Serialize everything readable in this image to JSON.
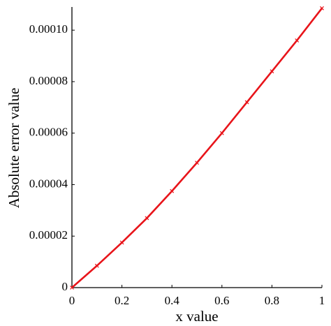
{
  "chart_data": {
    "type": "line",
    "x_label": "x value",
    "y_label": "Absolute error value",
    "x": [
      0,
      0.1,
      0.2,
      0.3,
      0.4,
      0.5,
      0.6,
      0.7,
      0.8,
      0.9,
      1
    ],
    "series": [
      {
        "color": "#e8141a",
        "values": [
          0,
          8.5e-06,
          1.75e-05,
          2.7e-05,
          3.75e-05,
          4.85e-05,
          6e-05,
          7.2e-05,
          8.4e-05,
          9.6e-05,
          0.0001085
        ]
      }
    ],
    "xlim": [
      0,
      1
    ],
    "xticks": [
      0,
      0.2,
      0.4,
      0.6,
      0.8,
      1
    ],
    "ylim": [
      0,
      0.000109
    ],
    "yticks": [
      0,
      2e-05,
      4e-05,
      6e-05,
      8e-05,
      {
        "value": 0.0001,
        "label": "0.00010"
      }
    ],
    "grid": false
  }
}
